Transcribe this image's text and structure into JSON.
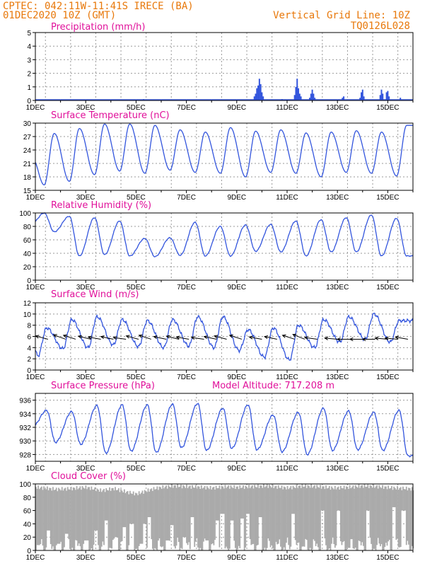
{
  "header": {
    "line1": "CPTEC:   042:11W-11:41S   IRECE (BA)",
    "line2": "01DEC2020 10Z (GMT)",
    "right1": "Vertical Grid Line: 10Z",
    "right2": "TQ0126L028"
  },
  "colors": {
    "line": "#3355dd",
    "cloud": "#aaaaaa",
    "arrow": "#000000",
    "header": "#e8780a",
    "title": "#e0109a"
  },
  "x_ticks": [
    "1DEC",
    "3DEC",
    "5DEC",
    "7DEC",
    "9DEC",
    "11DEC",
    "13DEC",
    "15DEC"
  ],
  "chart_data": [
    {
      "type": "bar",
      "title": "Precipitation (mm/h)",
      "ylim": [
        0,
        5
      ],
      "yticks": [
        0,
        1,
        2,
        3,
        4,
        5
      ],
      "x_unit": "day",
      "xlim": [
        1,
        16
      ],
      "series": [
        {
          "values": [
            [
              5.3,
              0.1
            ],
            [
              9.7,
              0.3
            ],
            [
              9.75,
              0.5
            ],
            [
              9.8,
              0.9
            ],
            [
              9.85,
              1.1
            ],
            [
              9.9,
              1.6
            ],
            [
              9.95,
              1.2
            ],
            [
              10.0,
              0.6
            ],
            [
              10.05,
              0.3
            ],
            [
              10.8,
              0.1
            ],
            [
              11.3,
              0.4
            ],
            [
              11.35,
              1.0
            ],
            [
              11.4,
              1.6
            ],
            [
              11.45,
              0.9
            ],
            [
              11.5,
              0.5
            ],
            [
              11.55,
              0.3
            ],
            [
              11.9,
              0.2
            ],
            [
              11.95,
              0.5
            ],
            [
              12.0,
              0.8
            ],
            [
              12.05,
              0.5
            ],
            [
              12.1,
              0.2
            ],
            [
              13.2,
              0.2
            ],
            [
              13.25,
              0.3
            ],
            [
              13.9,
              0.2
            ],
            [
              13.95,
              0.6
            ],
            [
              14.0,
              0.8
            ],
            [
              14.05,
              0.3
            ],
            [
              14.7,
              0.4
            ],
            [
              14.75,
              0.8
            ],
            [
              14.8,
              0.5
            ],
            [
              14.95,
              0.6
            ],
            [
              15.0,
              0.7
            ],
            [
              15.05,
              0.3
            ],
            [
              15.5,
              0.2
            ]
          ]
        }
      ]
    },
    {
      "type": "line",
      "title": "Surface Temperature (nC)",
      "ylim": [
        15,
        30
      ],
      "yticks": [
        15,
        18,
        21,
        24,
        27,
        30
      ],
      "x_unit": "day",
      "xlim": [
        1,
        16
      ],
      "minima": [
        16.2,
        17.0,
        18.5,
        19.3,
        18.8,
        19.5,
        19.0,
        18.8,
        18.0,
        19.0,
        18.8,
        18.0,
        19.0,
        18.8,
        18.2
      ],
      "maxima": [
        27.7,
        28.8,
        29.8,
        29.8,
        29.5,
        28.5,
        28.0,
        29.0,
        28.2,
        28.5,
        27.8,
        28.0,
        28.3,
        28.0,
        29.5
      ]
    },
    {
      "type": "line",
      "title": "Relative Humidity (%)",
      "ylim": [
        0,
        100
      ],
      "yticks": [
        0,
        20,
        40,
        60,
        80,
        100
      ],
      "x_unit": "day",
      "xlim": [
        1,
        16
      ],
      "maxima": [
        100,
        95,
        93,
        88,
        62,
        63,
        86,
        80,
        82,
        83,
        88,
        90,
        93,
        97,
        92
      ],
      "minima": [
        72,
        36,
        38,
        36,
        35,
        37,
        36,
        36,
        43,
        42,
        36,
        42,
        42,
        36,
        36
      ]
    },
    {
      "type": "line",
      "title": "Surface Wind (m/s)",
      "ylim": [
        0,
        12
      ],
      "yticks": [
        0,
        2,
        4,
        6,
        8,
        10,
        12
      ],
      "x_unit": "day",
      "xlim": [
        1,
        16
      ],
      "maxima": [
        7.5,
        9.0,
        9.5,
        9.0,
        8.8,
        9.0,
        9.5,
        9.5,
        7.2,
        7.5,
        8.0,
        9.0,
        9.5,
        10.0,
        8.8
      ],
      "minima": [
        2.5,
        3.8,
        4.0,
        4.5,
        4.2,
        4.0,
        4.3,
        4.0,
        3.5,
        2.3,
        1.8,
        4.0,
        5.0,
        5.5,
        5.0
      ],
      "arrows": [
        [
          1.5,
          -15
        ],
        [
          2.2,
          -20
        ],
        [
          2.6,
          -18
        ],
        [
          3.2,
          -14
        ],
        [
          3.6,
          -10
        ],
        [
          4.1,
          -12
        ],
        [
          4.6,
          -8
        ],
        [
          5.1,
          -15
        ],
        [
          5.6,
          -18
        ],
        [
          6.2,
          -12
        ],
        [
          6.7,
          -14
        ],
        [
          7.1,
          -10
        ],
        [
          7.7,
          -8
        ],
        [
          8.2,
          -12
        ],
        [
          8.6,
          -15
        ],
        [
          9.2,
          -18
        ],
        [
          10.0,
          -10
        ],
        [
          10.6,
          -12
        ],
        [
          11.3,
          -18
        ],
        [
          11.7,
          -22
        ],
        [
          12.2,
          -8
        ],
        [
          13.0,
          -5
        ],
        [
          13.5,
          0
        ],
        [
          14.0,
          0
        ],
        [
          14.5,
          0
        ],
        [
          15.0,
          -5
        ],
        [
          15.4,
          -5
        ],
        [
          15.8,
          -10
        ]
      ]
    },
    {
      "type": "line",
      "title": "Surface Pressure (hPa)",
      "annotation": "Model Altitude: 717.208  m",
      "ylim": [
        927,
        937
      ],
      "yticks": [
        928,
        930,
        932,
        934,
        936
      ],
      "x_unit": "day",
      "xlim": [
        1,
        16
      ],
      "maxima": [
        934.5,
        934.3,
        935.2,
        935.3,
        935.3,
        935.4,
        935.5,
        934.8,
        935.3,
        933.8,
        934.2,
        934.8,
        934.4,
        934.2,
        934.5
      ],
      "minima": [
        929.8,
        929.5,
        928.2,
        928.5,
        928.3,
        929.0,
        928.6,
        928.9,
        928.7,
        928.4,
        928.0,
        928.6,
        928.7,
        928.6,
        927.8
      ]
    },
    {
      "type": "area",
      "title": "Cloud Cover (%)",
      "ylim": [
        0,
        100
      ],
      "yticks": [
        0,
        20,
        40,
        60,
        80,
        100
      ],
      "x_unit": "day",
      "xlim": [
        1,
        16
      ],
      "segments": [
        [
          1.0,
          95
        ],
        [
          1.8,
          92
        ],
        [
          2.4,
          93
        ],
        [
          3.0,
          95
        ],
        [
          3.6,
          90
        ],
        [
          4.1,
          93
        ],
        [
          4.6,
          88
        ],
        [
          5.0,
          85
        ],
        [
          5.6,
          92
        ],
        [
          6.0,
          95
        ],
        [
          6.5,
          97
        ],
        [
          7.0,
          96
        ],
        [
          7.6,
          95
        ],
        [
          8.0,
          94
        ],
        [
          8.6,
          96
        ],
        [
          9.0,
          95
        ],
        [
          9.6,
          96
        ],
        [
          10.2,
          97
        ],
        [
          11.0,
          94
        ],
        [
          11.6,
          97
        ],
        [
          12.2,
          96
        ],
        [
          12.8,
          94
        ],
        [
          13.4,
          95
        ],
        [
          14.0,
          97
        ],
        [
          14.6,
          96
        ],
        [
          15.2,
          94
        ],
        [
          15.8,
          93
        ],
        [
          16.0,
          92
        ]
      ],
      "dips": [
        [
          1.1,
          8
        ],
        [
          1.5,
          30
        ],
        [
          1.9,
          10
        ],
        [
          2.2,
          25
        ],
        [
          3.0,
          15
        ],
        [
          3.4,
          30
        ],
        [
          3.8,
          45
        ],
        [
          4.2,
          20
        ],
        [
          4.5,
          35
        ],
        [
          4.8,
          40
        ],
        [
          5.2,
          10
        ],
        [
          5.3,
          40
        ],
        [
          5.5,
          50
        ],
        [
          6.2,
          15
        ],
        [
          6.4,
          38
        ],
        [
          6.9,
          20
        ],
        [
          7.2,
          50
        ],
        [
          7.8,
          15
        ],
        [
          8.2,
          45
        ],
        [
          8.4,
          55
        ],
        [
          8.8,
          45
        ],
        [
          9.2,
          48
        ],
        [
          9.4,
          55
        ],
        [
          9.9,
          50
        ],
        [
          11.2,
          55
        ],
        [
          12.4,
          60
        ],
        [
          13.0,
          60
        ],
        [
          14.2,
          60
        ],
        [
          15.2,
          65
        ],
        [
          15.6,
          60
        ]
      ]
    }
  ]
}
